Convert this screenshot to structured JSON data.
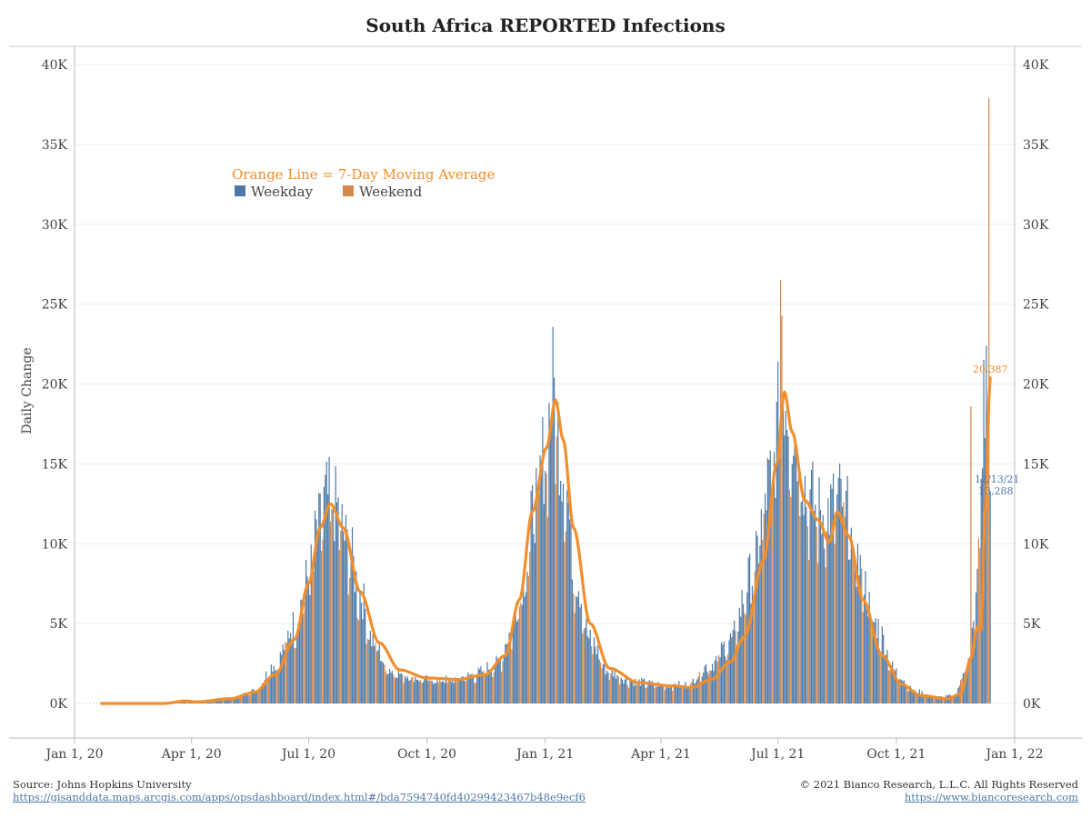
{
  "header": {
    "title": "South Africa REPORTED Infections"
  },
  "footer": {
    "source": "Source: Johns Hopkins University",
    "source_url": "https://gisanddata.maps.arcgis.com/apps/opsdashboard/index.html#/bda7594740fd40299423467b48e9ecf6",
    "copyright": "© 2021 Bianco Research, L.L.C. All Rights Reserved",
    "site_url": "https://www.biancoresearch.com"
  },
  "legend": {
    "title": "Orange Line = 7-Day Moving Average",
    "weekday": "Weekday",
    "weekend": "Weekend"
  },
  "annotations": {
    "ma_last": "20,387",
    "last_date": "12/13/21",
    "last_value": "13,288"
  },
  "colors": {
    "weekday": "#4e79a7",
    "weekend": "#d4884a",
    "ma": "#f28e2b"
  },
  "chart_data": {
    "type": "bar",
    "title": "South Africa REPORTED Infections",
    "ylabel": "Daily Change",
    "xlim": [
      "2020-01-01",
      "2022-01-01"
    ],
    "ylim": [
      0,
      40000
    ],
    "y_ticks": [
      0,
      5000,
      10000,
      15000,
      20000,
      25000,
      30000,
      35000,
      40000
    ],
    "y_tick_labels": [
      "0K",
      "5K",
      "10K",
      "15K",
      "20K",
      "25K",
      "30K",
      "35K",
      "40K"
    ],
    "x_ticks": [
      "2020-01-01",
      "2020-04-01",
      "2020-07-01",
      "2020-10-01",
      "2021-01-01",
      "2021-04-01",
      "2021-07-01",
      "2021-10-01",
      "2022-01-01"
    ],
    "x_tick_labels": [
      "Jan 1, 20",
      "Apr 1, 20",
      "Jul 1, 20",
      "Oct 1, 20",
      "Jan 1, 21",
      "Apr 1, 21",
      "Jul 1, 21",
      "Oct 1, 21",
      "Jan 1, 22"
    ],
    "grid": true,
    "legend_position": "top-left",
    "series_daily_anchors": [
      [
        "2020-01-22",
        0
      ],
      [
        "2020-03-05",
        0
      ],
      [
        "2020-03-25",
        200
      ],
      [
        "2020-04-15",
        150
      ],
      [
        "2020-05-01",
        300
      ],
      [
        "2020-05-20",
        800
      ],
      [
        "2020-06-05",
        2500
      ],
      [
        "2020-06-20",
        5000
      ],
      [
        "2020-07-01",
        8000
      ],
      [
        "2020-07-08",
        11000
      ],
      [
        "2020-07-15",
        13000
      ],
      [
        "2020-07-22",
        12500
      ],
      [
        "2020-08-01",
        10000
      ],
      [
        "2020-08-10",
        7000
      ],
      [
        "2020-08-20",
        4000
      ],
      [
        "2020-09-01",
        2200
      ],
      [
        "2020-09-15",
        1800
      ],
      [
        "2020-10-01",
        1500
      ],
      [
        "2020-10-20",
        1500
      ],
      [
        "2020-11-05",
        1800
      ],
      [
        "2020-11-25",
        2500
      ],
      [
        "2020-12-05",
        4500
      ],
      [
        "2020-12-15",
        8000
      ],
      [
        "2020-12-25",
        13000
      ],
      [
        "2021-01-01",
        16000
      ],
      [
        "2021-01-07",
        20000
      ],
      [
        "2021-01-15",
        15000
      ],
      [
        "2021-01-25",
        8000
      ],
      [
        "2021-02-05",
        4000
      ],
      [
        "2021-02-20",
        2000
      ],
      [
        "2021-03-10",
        1400
      ],
      [
        "2021-04-01",
        1200
      ],
      [
        "2021-04-20",
        1200
      ],
      [
        "2021-05-10",
        2500
      ],
      [
        "2021-05-25",
        4000
      ],
      [
        "2021-06-10",
        8000
      ],
      [
        "2021-06-25",
        14000
      ],
      [
        "2021-07-05",
        20000
      ],
      [
        "2021-07-15",
        17000
      ],
      [
        "2021-07-25",
        13000
      ],
      [
        "2021-08-05",
        12000
      ],
      [
        "2021-08-20",
        13000
      ],
      [
        "2021-09-01",
        9000
      ],
      [
        "2021-09-15",
        5000
      ],
      [
        "2021-10-01",
        2000
      ],
      [
        "2021-10-15",
        800
      ],
      [
        "2021-11-01",
        400
      ],
      [
        "2021-11-15",
        500
      ],
      [
        "2021-11-25",
        2500
      ],
      [
        "2021-12-01",
        5000
      ],
      [
        "2021-12-05",
        12000
      ],
      [
        "2021-12-08",
        19000
      ],
      [
        "2021-12-13",
        13288
      ]
    ],
    "series_daily_spikes": [
      [
        "2021-07-03",
        26500
      ],
      [
        "2021-07-04",
        24300
      ],
      [
        "2021-12-10",
        22400
      ],
      [
        "2021-12-12",
        37900
      ],
      [
        "2021-11-28",
        18600
      ]
    ],
    "series_ma_anchors": [
      [
        "2020-01-22",
        0
      ],
      [
        "2020-03-10",
        0
      ],
      [
        "2020-03-27",
        150
      ],
      [
        "2020-04-05",
        100
      ],
      [
        "2020-05-01",
        300
      ],
      [
        "2020-05-20",
        700
      ],
      [
        "2020-06-05",
        1800
      ],
      [
        "2020-06-20",
        4000
      ],
      [
        "2020-07-01",
        7500
      ],
      [
        "2020-07-10",
        11000
      ],
      [
        "2020-07-18",
        12500
      ],
      [
        "2020-07-28",
        11000
      ],
      [
        "2020-08-10",
        7000
      ],
      [
        "2020-08-25",
        3800
      ],
      [
        "2020-09-10",
        2100
      ],
      [
        "2020-10-01",
        1600
      ],
      [
        "2020-10-25",
        1500
      ],
      [
        "2020-11-15",
        1800
      ],
      [
        "2020-12-01",
        3000
      ],
      [
        "2020-12-12",
        6500
      ],
      [
        "2020-12-22",
        12000
      ],
      [
        "2021-01-02",
        16000
      ],
      [
        "2021-01-09",
        19000
      ],
      [
        "2021-01-15",
        16500
      ],
      [
        "2021-01-23",
        11000
      ],
      [
        "2021-02-05",
        5000
      ],
      [
        "2021-02-20",
        2200
      ],
      [
        "2021-03-15",
        1300
      ],
      [
        "2021-04-10",
        1100
      ],
      [
        "2021-04-25",
        1000
      ],
      [
        "2021-05-10",
        1500
      ],
      [
        "2021-05-25",
        2600
      ],
      [
        "2021-06-05",
        4200
      ],
      [
        "2021-06-20",
        9000
      ],
      [
        "2021-06-30",
        15000
      ],
      [
        "2021-07-06",
        19500
      ],
      [
        "2021-07-12",
        17000
      ],
      [
        "2021-07-22",
        12700
      ],
      [
        "2021-08-01",
        11500
      ],
      [
        "2021-08-10",
        10100
      ],
      [
        "2021-08-16",
        12000
      ],
      [
        "2021-08-25",
        10500
      ],
      [
        "2021-09-05",
        6500
      ],
      [
        "2021-09-20",
        3000
      ],
      [
        "2021-10-05",
        1200
      ],
      [
        "2021-10-20",
        500
      ],
      [
        "2021-11-10",
        300
      ],
      [
        "2021-11-20",
        600
      ],
      [
        "2021-11-28",
        2800
      ],
      [
        "2021-12-03",
        4800
      ],
      [
        "2021-12-06",
        4600
      ],
      [
        "2021-12-09",
        12000
      ],
      [
        "2021-12-13",
        20387
      ]
    ],
    "last_point": {
      "date": "2021-12-13",
      "daily": 13288,
      "ma7": 20387
    }
  }
}
